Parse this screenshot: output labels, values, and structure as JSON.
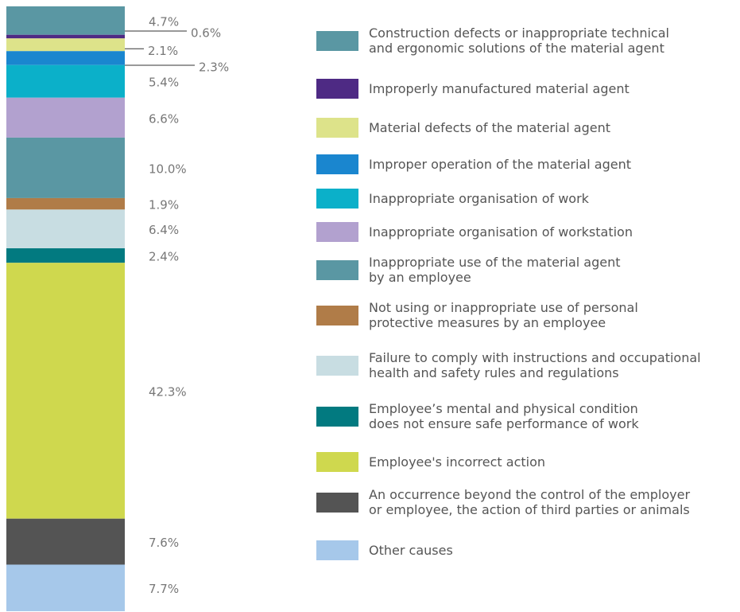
{
  "chart_data": {
    "type": "stacked-bar",
    "series": [
      {
        "name": "Construction defects or inappropriate technical\nand ergonomic solutions of the material agent",
        "color": "#5a97a3",
        "values": [
          4.7
        ],
        "value_labels": [
          "4.7%"
        ]
      },
      {
        "name": "Improperly manufactured material agent",
        "color": "#4e2a84",
        "values": [
          0.6
        ],
        "value_labels": [
          "0.6%"
        ]
      },
      {
        "name": "Material defects of the material agent",
        "color": "#dde38a",
        "values": [
          2.1
        ],
        "value_labels": [
          "2.1%"
        ]
      },
      {
        "name": "Improper operation of the material agent",
        "color": "#1a86cf",
        "values": [
          2.3
        ],
        "value_labels": [
          "2.3%"
        ]
      },
      {
        "name": "Inappropriate organisation of work",
        "color": "#0bb0c9",
        "values": [
          5.4
        ],
        "value_labels": [
          "5.4%"
        ]
      },
      {
        "name": "Inappropriate organisation of workstation",
        "color": "#b2a1cf",
        "values": [
          6.6
        ],
        "value_labels": [
          "6.6%"
        ]
      },
      {
        "name": "Inappropriate use of the material agent\nby an employee",
        "color": "#5a97a3",
        "values": [
          10.0
        ],
        "value_labels": [
          "10.0%"
        ]
      },
      {
        "name": "Not using or inappropriate use of personal\nprotective measures by an employee",
        "color": "#b07c48",
        "values": [
          1.9
        ],
        "value_labels": [
          "1.9%"
        ]
      },
      {
        "name": "Failure to comply with instructions and occupational\nhealth and safety rules and regulations",
        "color": "#c8dde2",
        "values": [
          6.4
        ],
        "value_labels": [
          "6.4%"
        ]
      },
      {
        "name": "Employee’s mental and physical condition\ndoes not ensure safe performance of work",
        "color": "#027a80",
        "values": [
          2.4
        ],
        "value_labels": [
          "2.4%"
        ]
      },
      {
        "name": "Employee's incorrect action",
        "color": "#cfd84e",
        "values": [
          42.3
        ],
        "value_labels": [
          "42.3%"
        ]
      },
      {
        "name": "An occurrence beyond the control of the employer\nor employee, the action of third parties or animals",
        "color": "#545454",
        "values": [
          7.6
        ],
        "value_labels": [
          "7.6%"
        ]
      },
      {
        "name": "Other causes",
        "color": "#a6c8ea",
        "values": [
          7.7
        ],
        "value_labels": [
          "7.7%"
        ]
      }
    ]
  }
}
